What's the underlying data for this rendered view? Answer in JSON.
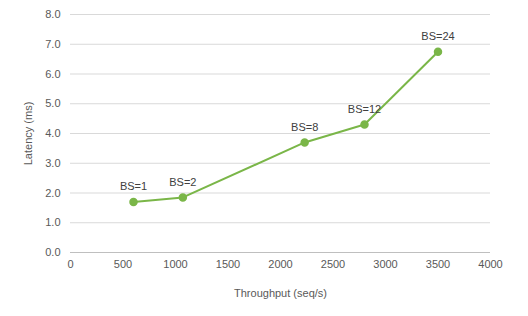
{
  "chart_data": {
    "type": "line",
    "xlabel": "Throughput (seq/s)",
    "ylabel": "Latency (ms)",
    "x": [
      600,
      1070,
      2230,
      2800,
      3500
    ],
    "values": [
      1.7,
      1.85,
      3.7,
      4.3,
      6.75
    ],
    "annotations": [
      "BS=1",
      "BS=2",
      "BS=8",
      "BS=12",
      "BS=24"
    ],
    "color": "#7ab648",
    "marker": "circle",
    "line_style": "solid",
    "xlim": [
      0,
      4000
    ],
    "xticks": [
      0,
      500,
      1000,
      1500,
      2000,
      2500,
      3000,
      3500,
      4000
    ],
    "ylim": [
      0,
      8
    ],
    "yticks": [
      {
        "value": 0,
        "label": "0.0"
      },
      {
        "value": 1,
        "label": "1.0"
      },
      {
        "value": 2,
        "label": "2.0"
      },
      {
        "value": 3,
        "label": "3.0"
      },
      {
        "value": 4,
        "label": "4.0"
      },
      {
        "value": 5,
        "label": "5.0"
      },
      {
        "value": 6,
        "label": "6.0"
      },
      {
        "value": 7,
        "label": "7.0"
      },
      {
        "value": 8,
        "label": "8.0"
      }
    ],
    "grid": true
  }
}
